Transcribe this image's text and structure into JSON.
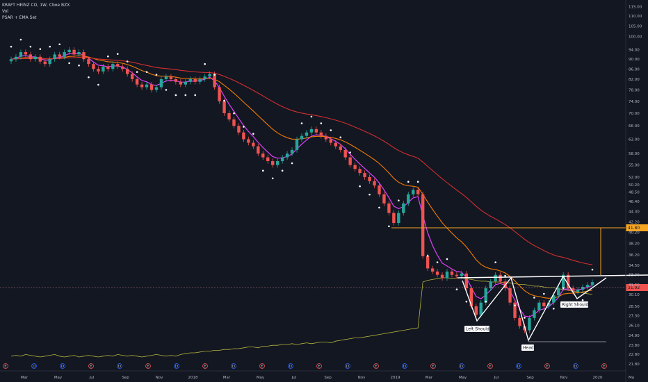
{
  "legend": {
    "line1": "KRAFT HEINZ CO, 1W, Cboe BZX",
    "line2": "Vol",
    "line3": "PSAR + EMA Set"
  },
  "colors": {
    "background": "#131722",
    "up": "#26a69a",
    "down": "#ef5350",
    "ema_short": "#e040fb",
    "ema_mid": "#f57c00",
    "ema_long": "#d32f2f",
    "ema_green": "#4caf50",
    "ema_blue": "#4fc3f7",
    "volume": "#b5b53a",
    "psar": "#ffffff",
    "pattern": "#ffffff",
    "target": "#f5a623"
  },
  "chart_data": {
    "type": "candlestick",
    "symbol": "KRAFT HEINZ CO",
    "interval": "1W",
    "exchange": "Cboe BZX",
    "x_labels": [
      "Mar",
      "May",
      "Jul",
      "Sep",
      "Nov",
      "2018",
      "Mar",
      "May",
      "Jul",
      "Sep",
      "Nov",
      "2019",
      "Mar",
      "May",
      "Jul",
      "Sep",
      "Nov",
      "2020",
      "Ma"
    ],
    "y_ticks": [
      21.8,
      22.8,
      23.8,
      24.9,
      26.1,
      27.3,
      28.5,
      30.1,
      31.5,
      33.0,
      34.5,
      36.2,
      38.2,
      40.2,
      42.2,
      44.3,
      46.4,
      48.5,
      50.2,
      52.0,
      55.0,
      58.0,
      62.0,
      66.0,
      70.0,
      74.0,
      78.0,
      82.0,
      86.0,
      90.0,
      94.0,
      100.0,
      105.0,
      110.0,
      115.0
    ],
    "y_tick_labels": [
      "21.80",
      "22.80",
      "23.80",
      "24.90",
      "26.10",
      "27.30",
      "28.50",
      "30.10",
      "31.50",
      "33.00",
      "34.50",
      "36.20",
      "38.20",
      "40.20",
      "42.20",
      "44.30",
      "46.40",
      "48.50",
      "50.20",
      "52.00",
      "55.00",
      "58.00",
      "62.00",
      "66.00",
      "70.00",
      "74.00",
      "78.00",
      "82.00",
      "86.00",
      "90.00",
      "94.00",
      "100.00",
      "105.00",
      "110.00",
      "115.00"
    ],
    "ylim": [
      21.8,
      117
    ],
    "price_labels": {
      "target": "41.80",
      "last": "31.92"
    },
    "annotations": [
      "Left Shoulder",
      "Head",
      "Right Shoulder"
    ],
    "events": [
      "E",
      "D",
      "D",
      "E",
      "D",
      "E",
      "D",
      "E",
      "D",
      "E",
      "D",
      "E",
      "D",
      "E",
      "D",
      "E",
      "D",
      "E",
      "D",
      "E",
      "D",
      "E"
    ],
    "close": [
      90,
      91,
      93,
      92,
      90,
      91,
      89,
      88,
      90,
      92,
      91,
      93,
      94,
      92,
      93,
      90,
      88,
      86,
      85,
      87,
      86,
      88,
      87,
      86,
      84,
      82,
      80,
      79,
      80,
      78,
      79,
      82,
      83,
      82,
      81,
      80,
      81,
      82,
      81,
      82,
      83,
      84,
      79,
      74,
      70,
      68,
      66,
      64,
      62,
      61,
      60,
      58,
      57,
      56,
      55,
      56,
      57,
      58,
      59,
      62,
      63,
      64,
      65,
      64,
      63,
      62,
      61,
      60,
      59,
      57,
      55,
      54,
      53,
      52,
      51,
      50,
      48,
      46,
      44,
      42,
      44,
      46,
      48,
      49,
      48,
      36,
      34,
      33.5,
      33,
      32.5,
      33.5,
      33,
      32.8,
      33.2,
      31,
      28.5,
      27.4,
      29,
      31,
      32,
      33,
      32,
      31,
      29,
      27,
      26,
      25.5,
      27,
      28,
      29,
      28.5,
      29,
      30,
      31,
      33,
      31,
      30.5,
      30.8,
      31.2,
      31.5,
      31.9
    ],
    "volume_level": [
      0.06,
      0.07,
      0.06,
      0.08,
      0.07,
      0.06,
      0.05,
      0.06,
      0.07,
      0.08,
      0.06,
      0.05,
      0.06,
      0.07,
      0.05,
      0.06,
      0.07,
      0.06,
      0.05,
      0.06,
      0.07,
      0.06,
      0.08,
      0.07,
      0.06,
      0.07,
      0.06,
      0.05,
      0.06,
      0.07,
      0.08,
      0.07,
      0.06,
      0.07,
      0.06,
      0.08,
      0.09,
      0.1,
      0.1,
      0.11,
      0.12,
      0.12,
      0.13,
      0.13,
      0.14,
      0.14,
      0.15,
      0.15,
      0.16,
      0.17,
      0.17,
      0.16,
      0.18,
      0.18,
      0.19,
      0.19,
      0.2,
      0.2,
      0.21,
      0.2,
      0.21,
      0.22,
      0.21,
      0.22,
      0.23,
      0.23,
      0.22,
      0.24,
      0.25,
      0.26,
      0.27,
      0.28,
      0.28,
      0.29,
      0.3,
      0.31,
      0.32,
      0.33,
      0.34,
      0.35,
      0.36,
      0.37,
      0.38,
      0.39,
      0.4,
      0.95,
      0.97,
      0.98,
      0.99,
      1.0,
      1.0,
      0.99,
      1.0,
      1.0,
      0.99,
      0.98,
      0.97,
      0.96,
      0.96,
      0.95,
      0.95,
      0.95,
      0.94,
      0.94,
      0.93,
      0.92,
      0.92,
      0.91,
      0.9,
      0.9,
      0.89,
      0.88,
      0.88,
      0.87,
      0.86,
      0.85,
      0.84,
      0.83,
      0.82,
      0.81,
      0.8
    ]
  }
}
